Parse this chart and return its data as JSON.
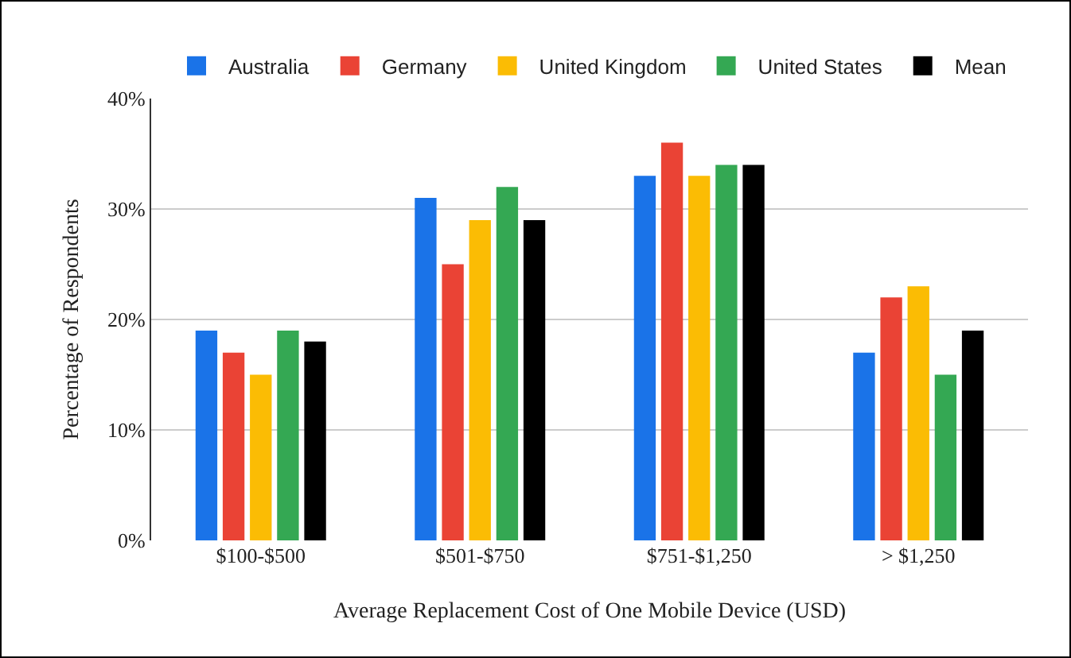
{
  "chart_data": {
    "type": "bar",
    "xlabel": "Average Replacement Cost of One Mobile Device (USD)",
    "ylabel": "Percentage of Respondents",
    "categories": [
      "$100-$500",
      "$501-$750",
      "$751-$1,250",
      "> $1,250"
    ],
    "series": [
      {
        "name": "Australia",
        "color": "#1a73e8",
        "values": [
          19,
          31,
          33,
          17
        ]
      },
      {
        "name": "Germany",
        "color": "#ea4335",
        "values": [
          17,
          25,
          36,
          22
        ]
      },
      {
        "name": "United Kingdom",
        "color": "#fbbc04",
        "values": [
          15,
          29,
          33,
          23
        ]
      },
      {
        "name": "United States",
        "color": "#34a853",
        "values": [
          19,
          32,
          34,
          15
        ]
      },
      {
        "name": "Mean",
        "color": "#000000",
        "values": [
          18,
          29,
          34,
          19
        ]
      }
    ],
    "ylim": [
      0,
      40
    ],
    "yticks": [
      {
        "value": 0,
        "label": "0%"
      },
      {
        "value": 10,
        "label": "10%"
      },
      {
        "value": 20,
        "label": "20%"
      },
      {
        "value": 30,
        "label": "30%"
      },
      {
        "value": 40,
        "label": "40%"
      }
    ],
    "grid": "y",
    "legend": "top"
  }
}
